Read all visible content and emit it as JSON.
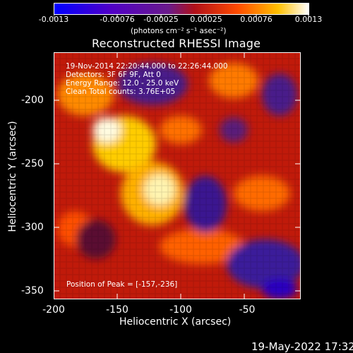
{
  "colorbar": {
    "ticks": [
      "-0.0013",
      "-0.00076",
      "-0.00025",
      "0.00025",
      "0.00076",
      "0.0013"
    ],
    "units": "(photons cm⁻² s⁻¹ asec⁻²)"
  },
  "title": "Reconstructed RHESSI Image",
  "info": {
    "line1": "19-Nov-2014 22:20:44.000 to 22:26:44.000",
    "line2": "Detectors: 3F 6F 9F, Att 0",
    "line3": "Energy Range: 12.0 - 25.0 keV",
    "line4": "Clean    Total counts: 3.76E+05"
  },
  "peak": "Position of Peak = [-157,-236]",
  "axes": {
    "xlabel": "Heliocentric X (arcsec)",
    "ylabel": "Heliocentric Y (arcsec)",
    "xticks": [
      "-200",
      "-150",
      "-100",
      "-50"
    ],
    "yticks": [
      "-200",
      "-250",
      "-300",
      "-350"
    ]
  },
  "footer_date": "19-May-2022 17:32",
  "colors": {
    "background": "#000000",
    "axis": "#ffffff"
  },
  "chart_data": {
    "type": "heatmap",
    "title": "Reconstructed RHESSI Image",
    "xlabel": "Heliocentric X (arcsec)",
    "ylabel": "Heliocentric Y (arcsec)",
    "xlim": [
      -200,
      -5
    ],
    "ylim": [
      -355,
      -165
    ],
    "colorbar_range": [
      -0.0013,
      0.0013
    ],
    "colormap": "blue-purple-red-orange-yellow-white",
    "peak_position": [
      -157,
      -236
    ]
  }
}
